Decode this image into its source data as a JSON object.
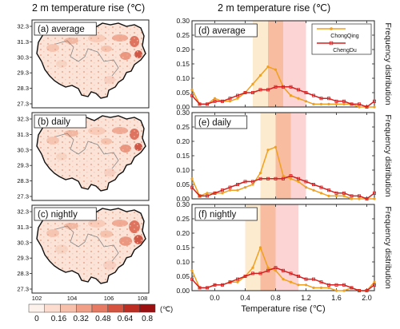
{
  "headers": {
    "left": "2 m temperature rise (℃)",
    "right": "2 m temperature rise (℃)"
  },
  "maps": {
    "lat_ticks": [
      "32.3",
      "31.3",
      "30.3",
      "29.3",
      "28.3",
      "27.3"
    ],
    "lon_ticks": [
      "102",
      "104",
      "106",
      "108"
    ],
    "panels": [
      {
        "label": "(a) average"
      },
      {
        "label": "(b) daily"
      },
      {
        "label": "(c) nightly"
      }
    ],
    "colorbar": {
      "ticks": [
        "0",
        "0.16",
        "0.32",
        "0.48",
        "0.64",
        "0.8"
      ],
      "unit": "(℃)",
      "colors": [
        "#fdf1ec",
        "#fbdccf",
        "#f7c0ab",
        "#f19f86",
        "#e67a62",
        "#d6543f",
        "#bd2d22",
        "#9b0f10"
      ]
    }
  },
  "chart_data": {
    "type": "line",
    "xlabel": "Temperature rise (℃)",
    "ylabel": "Frequency distribution",
    "xlim": [
      -0.3,
      2.1
    ],
    "ylim": [
      0,
      0.3
    ],
    "x_ticks": [
      "0.0",
      "0.4",
      "0.8",
      "1.2",
      "1.6",
      "2.0"
    ],
    "y_ticks": [
      "0.00",
      "0.05",
      "0.10",
      "0.15",
      "0.20",
      "0.25",
      "0.30"
    ],
    "legend": {
      "position": "top-right",
      "entries": [
        "ChongQing",
        "ChengDu"
      ]
    },
    "colors": {
      "ChongQing": "#f0a020",
      "ChengDu": "#d42020",
      "band1": "#fde8c8",
      "band2": "#f7b090",
      "band3": "#fccccc"
    },
    "x": [
      -0.3,
      -0.2,
      -0.1,
      0.0,
      0.1,
      0.2,
      0.3,
      0.4,
      0.5,
      0.6,
      0.7,
      0.8,
      0.9,
      1.0,
      1.1,
      1.2,
      1.3,
      1.4,
      1.5,
      1.6,
      1.7,
      1.8,
      1.9,
      2.0,
      2.1
    ],
    "panels": [
      {
        "label": "(d) average",
        "bands": [
          [
            0.5,
            0.7
          ],
          [
            0.7,
            0.9
          ],
          [
            0.9,
            1.2
          ]
        ],
        "series": [
          {
            "name": "ChongQing",
            "values": [
              0.06,
              0.01,
              0.01,
              0.03,
              0.02,
              0.02,
              0.03,
              0.05,
              0.08,
              0.11,
              0.14,
              0.13,
              0.07,
              0.04,
              0.03,
              0.02,
              0.01,
              0.01,
              0.01,
              0.01,
              0.01,
              0.01,
              0.0,
              0.0,
              0.0
            ]
          },
          {
            "name": "ChengDu",
            "values": [
              0.04,
              0.01,
              0.01,
              0.02,
              0.02,
              0.03,
              0.04,
              0.05,
              0.05,
              0.06,
              0.06,
              0.07,
              0.07,
              0.07,
              0.06,
              0.05,
              0.04,
              0.03,
              0.03,
              0.02,
              0.02,
              0.01,
              0.01,
              0.0,
              0.02
            ]
          }
        ]
      },
      {
        "label": "(e) daily",
        "bands": [
          [
            0.6,
            0.8
          ],
          [
            0.8,
            1.0
          ],
          [
            1.0,
            1.2
          ]
        ],
        "series": [
          {
            "name": "ChongQing",
            "values": [
              0.07,
              0.01,
              0.02,
              0.02,
              0.02,
              0.03,
              0.03,
              0.04,
              0.05,
              0.09,
              0.17,
              0.18,
              0.08,
              0.07,
              0.06,
              0.04,
              0.03,
              0.02,
              0.01,
              0.01,
              0.01,
              0.0,
              0.0,
              0.0,
              0.0
            ]
          },
          {
            "name": "ChengDu",
            "values": [
              0.04,
              0.01,
              0.01,
              0.02,
              0.03,
              0.04,
              0.05,
              0.06,
              0.06,
              0.07,
              0.07,
              0.07,
              0.07,
              0.08,
              0.07,
              0.06,
              0.05,
              0.04,
              0.03,
              0.02,
              0.02,
              0.01,
              0.01,
              0.0,
              0.02
            ]
          }
        ]
      },
      {
        "label": "(f) nightly",
        "bands": [
          [
            0.4,
            0.6
          ],
          [
            0.6,
            0.8
          ],
          [
            0.8,
            1.1
          ]
        ],
        "series": [
          {
            "name": "ChongQing",
            "values": [
              0.07,
              0.01,
              0.01,
              0.02,
              0.02,
              0.03,
              0.03,
              0.05,
              0.08,
              0.15,
              0.08,
              0.07,
              0.04,
              0.03,
              0.02,
              0.02,
              0.01,
              0.01,
              0.01,
              0.0,
              0.0,
              0.01,
              0.0,
              0.0,
              0.03
            ]
          },
          {
            "name": "ChengDu",
            "values": [
              0.04,
              0.01,
              0.01,
              0.02,
              0.02,
              0.03,
              0.04,
              0.05,
              0.06,
              0.06,
              0.07,
              0.08,
              0.07,
              0.06,
              0.05,
              0.04,
              0.04,
              0.03,
              0.02,
              0.02,
              0.02,
              0.01,
              0.0,
              0.0,
              0.02
            ]
          }
        ]
      }
    ]
  }
}
